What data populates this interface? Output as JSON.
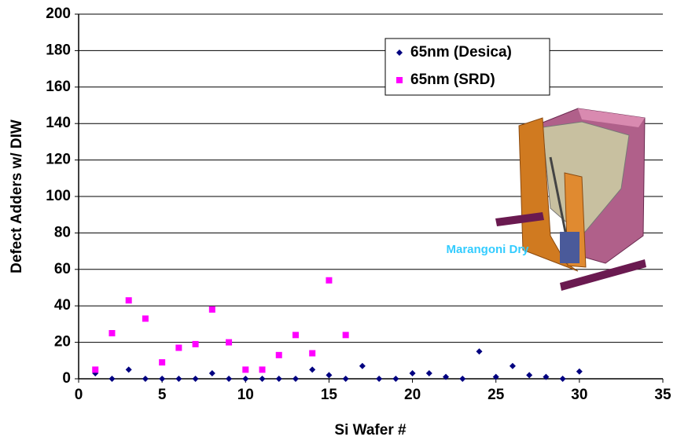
{
  "chart_data": {
    "type": "scatter",
    "x_label": "Si Wafer #",
    "y_label": "Defect Adders w/ DIW",
    "annotation": "Marangoni Dry",
    "xlim": [
      0,
      35
    ],
    "xticks": [
      0,
      5,
      10,
      15,
      20,
      25,
      30,
      35
    ],
    "ylim": [
      0,
      200
    ],
    "yticks": [
      0,
      20,
      40,
      60,
      80,
      100,
      120,
      140,
      160,
      180,
      200
    ],
    "grid": true,
    "legend": "upper right",
    "series": [
      {
        "name": "65nm (Desica)",
        "color": "#000080",
        "marker": "diamond",
        "x": [
          1,
          2,
          3,
          4,
          5,
          6,
          7,
          8,
          9,
          10,
          11,
          12,
          13,
          14,
          15,
          16,
          17,
          18,
          19,
          20,
          21,
          22,
          23,
          24,
          25,
          26,
          27,
          28,
          29,
          30
        ],
        "values": [
          3,
          0,
          5,
          0,
          0,
          0,
          0,
          3,
          0,
          0,
          0,
          0,
          0,
          5,
          2,
          0,
          7,
          0,
          0,
          3,
          3,
          1,
          0,
          15,
          1,
          7,
          2,
          1,
          0,
          4
        ]
      },
      {
        "name": "65nm (SRD)",
        "color": "#ff00ff",
        "marker": "square",
        "x": [
          1,
          2,
          3,
          4,
          5,
          6,
          7,
          8,
          9,
          10,
          11,
          12,
          13,
          14,
          15,
          16
        ],
        "values": [
          5,
          25,
          43,
          33,
          9,
          17,
          19,
          38,
          20,
          5,
          5,
          13,
          24,
          14,
          54,
          24
        ]
      }
    ]
  }
}
